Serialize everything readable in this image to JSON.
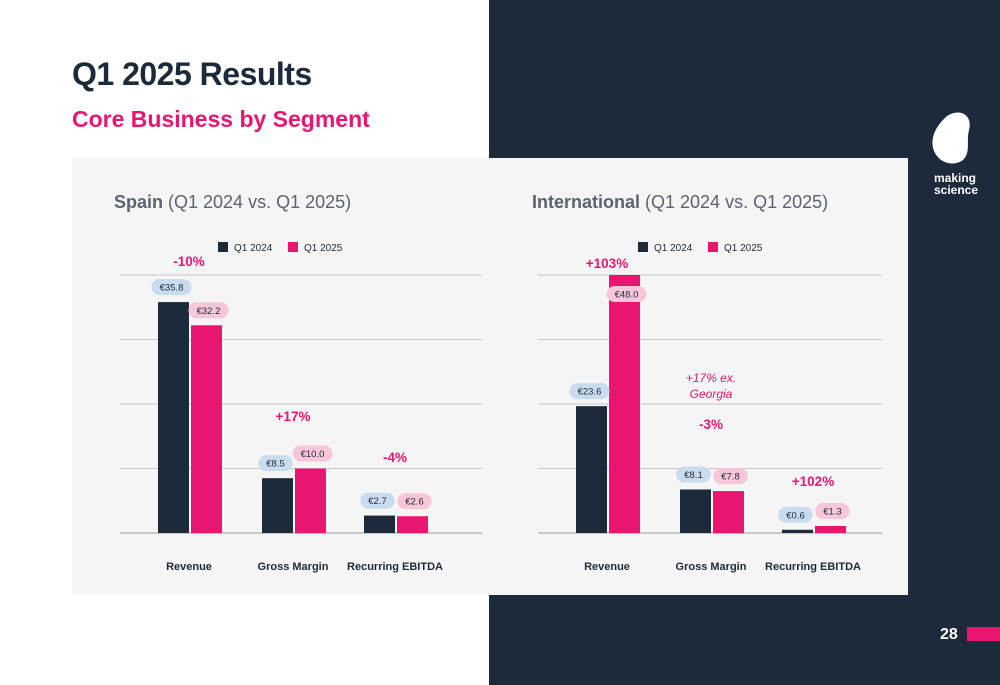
{
  "slide": {
    "title": "Q1 2025 Results",
    "subtitle": "Core Business by Segment",
    "logo_line1": "making",
    "logo_line2": "science",
    "page_number": "28"
  },
  "colors": {
    "dark": "#1d2a3b",
    "accent": "#e8166f",
    "q1_2024_label_bg": "#c9dcef",
    "q1_2025_label_bg": "#f7c6d9"
  },
  "chart_data": [
    {
      "type": "bar",
      "title": "Spain",
      "subtitle": "(Q1 2024 vs. Q1 2025)",
      "categories": [
        "Revenue",
        "Gross Margin",
        "Recurring EBITDA"
      ],
      "series": [
        {
          "name": "Q1 2024",
          "values": [
            35.8,
            8.5,
            2.7
          ],
          "labels": [
            "€35.8",
            "€8.5",
            "€2.7"
          ]
        },
        {
          "name": "Q1 2025",
          "values": [
            32.2,
            10.0,
            2.6
          ],
          "labels": [
            "€32.2",
            "€10.0",
            "€2.6"
          ]
        }
      ],
      "changes": [
        "-10%",
        "+17%",
        "-4%"
      ],
      "ylim": [
        0,
        40
      ],
      "grid": true,
      "legend": "top-center"
    },
    {
      "type": "bar",
      "title": "International",
      "subtitle": "(Q1 2024 vs. Q1 2025)",
      "categories": [
        "Revenue",
        "Gross Margin",
        "Recurring EBITDA"
      ],
      "series": [
        {
          "name": "Q1 2024",
          "values": [
            23.6,
            8.1,
            0.6
          ],
          "labels": [
            "€23.6",
            "€8.1",
            "€0.6"
          ]
        },
        {
          "name": "Q1 2025",
          "values": [
            48.0,
            7.8,
            1.3
          ],
          "labels": [
            "€48.0",
            "€7.8",
            "€1.3"
          ]
        }
      ],
      "changes": [
        "+103%",
        "-3%",
        "+102%"
      ],
      "annotation": {
        "line1": "+17% ex.",
        "line2": "Georgia"
      },
      "ylim": [
        0,
        48
      ],
      "grid": true,
      "legend": "top-center"
    }
  ]
}
